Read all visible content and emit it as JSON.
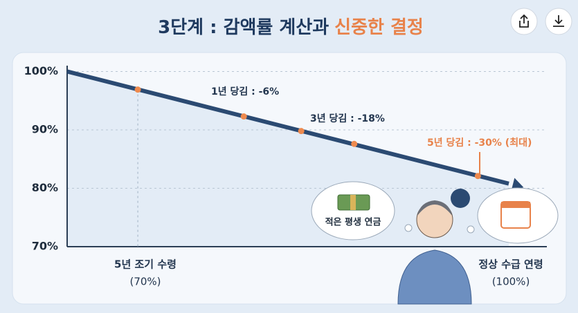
{
  "chart_data": {
    "type": "line",
    "title": "3단계 : 감액률 계산과",
    "title_highlight": "신중한 결정",
    "xlim": [
      0,
      100
    ],
    "ylim": [
      70,
      101
    ],
    "yticks": [
      {
        "value": 70,
        "label": "70%"
      },
      {
        "value": 80,
        "label": "80%"
      },
      {
        "value": 90,
        "label": "90%"
      },
      {
        "value": 100,
        "label": "100%"
      }
    ],
    "grid": true,
    "line_color": "#2b4a72",
    "marker_color": "#ee8a4e",
    "area_color": "#e3ecf6",
    "series": [
      {
        "kind": "line",
        "x": [
          0,
          100
        ],
        "values": [
          100,
          80.8
        ]
      },
      {
        "kind": "points",
        "x": [
          16,
          40,
          53,
          65,
          93
        ],
        "values": [
          96.9,
          92.3,
          89.8,
          87.6,
          82.1
        ]
      }
    ],
    "x_labels": {
      "left": [
        "5년 조기 수령",
        "(70%)"
      ],
      "right": [
        "정상 수급 연령",
        "(100%)"
      ]
    },
    "annotations": [
      "1년 당김 : -6%",
      "3년 당김 : -18%",
      "5년 당김 : -30% (최대)"
    ],
    "bubble_text": "적은 평생 연금"
  }
}
